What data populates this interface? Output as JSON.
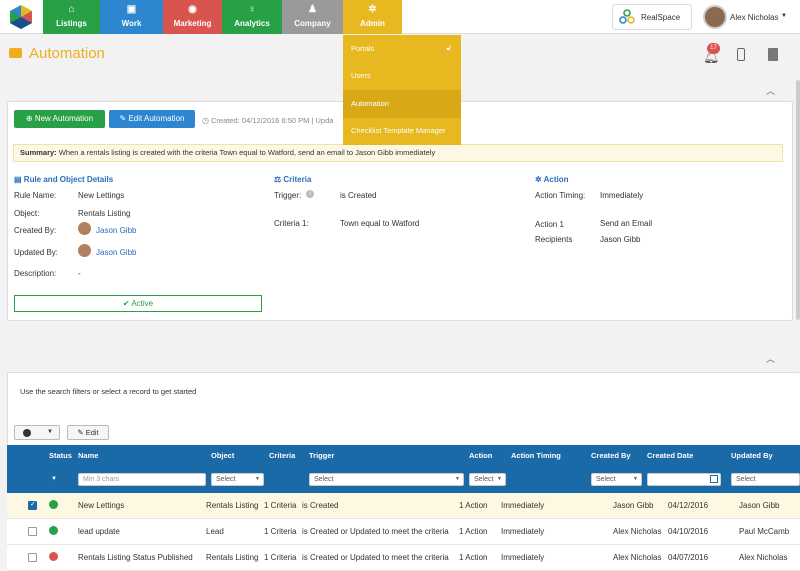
{
  "nav": {
    "tabs": [
      {
        "label": "Listings",
        "icon": "home-icon",
        "color": "#27a046"
      },
      {
        "label": "Work",
        "icon": "briefcase-icon",
        "color": "#2d86cf"
      },
      {
        "label": "Marketing",
        "icon": "globe-icon",
        "color": "#d9534f"
      },
      {
        "label": "Analytics",
        "icon": "lightbulb-icon",
        "color": "#27a046"
      },
      {
        "label": "Company",
        "icon": "users-icon",
        "color": "#9a9a9a"
      },
      {
        "label": "Admin",
        "icon": "gear-icon",
        "color": "#e8b820"
      }
    ],
    "brand": "RealSpace",
    "user": "Alex Nicholas"
  },
  "admin_menu": [
    "Portals",
    "Users",
    "Automation",
    "Checklist Template Manager"
  ],
  "page": {
    "title": "Automation",
    "notification_count": "17"
  },
  "toolbar": {
    "new_label": "New Automation",
    "edit_label": "Edit Automation",
    "created_text": "Created: 04/12/2016 6:50 PM | Upda"
  },
  "summary": {
    "prefix": "Summary:",
    "text": "When a rentals listing is created with the criteria Town equal to Watford, send an email to Jason Gibb immediately"
  },
  "details": {
    "heading": "Rule and Object Details",
    "rule_name_label": "Rule Name:",
    "rule_name": "New Lettings",
    "object_label": "Object:",
    "object": "Rentals Listing",
    "created_by_label": "Created By:",
    "created_by": "Jason Gibb",
    "updated_by_label": "Updated By:",
    "updated_by": "Jason Gibb",
    "description_label": "Description:",
    "description": "-",
    "status": "Active"
  },
  "criteria": {
    "heading": "Criteria",
    "trigger_label": "Trigger:",
    "trigger": "is Created",
    "criteria_label": "Criteria 1:",
    "criteria": "Town equal to Watford"
  },
  "action": {
    "heading": "Action",
    "timing_label": "Action Timing:",
    "timing": "Immediately",
    "action_label": "Action 1",
    "action": "Send an Email",
    "recipients_label": "Recipients",
    "recipients": "Jason Gibb"
  },
  "list": {
    "hint": "Use the search filters or select a record to get started",
    "edit_label": "Edit",
    "columns": [
      "Status",
      "Name",
      "Object",
      "Criteria",
      "Trigger",
      "Action",
      "Action Timing",
      "Created By",
      "Created Date",
      "Updated By"
    ],
    "filters": {
      "name_placeholder": "Min 3 chars",
      "select": "Select"
    },
    "rows": [
      {
        "checked": true,
        "status": "ok",
        "name": "New Lettings",
        "object": "Rentals Listing",
        "criteria": "1 Criteria",
        "trigger": "is Created",
        "action": "1 Action",
        "timing": "Immediately",
        "created_by": "Jason Gibb",
        "created_date": "04/12/2016",
        "updated_by": "Jason Gibb"
      },
      {
        "checked": false,
        "status": "ok",
        "name": "lead update",
        "object": "Lead",
        "criteria": "1 Criteria",
        "trigger": "is Created or Updated to meet the criteria",
        "action": "1 Action",
        "timing": "Immediately",
        "created_by": "Alex Nicholas",
        "created_date": "04/10/2016",
        "updated_by": "Paul McCamb"
      },
      {
        "checked": false,
        "status": "error",
        "name": "Rentals Listing Status Published",
        "object": "Rentals Listing",
        "criteria": "1 Criteria",
        "trigger": "is Created or Updated to meet the criteria",
        "action": "1 Action",
        "timing": "Immediately",
        "created_by": "Alex Nicholas",
        "created_date": "04/07/2016",
        "updated_by": "Alex Nicholas"
      }
    ]
  }
}
